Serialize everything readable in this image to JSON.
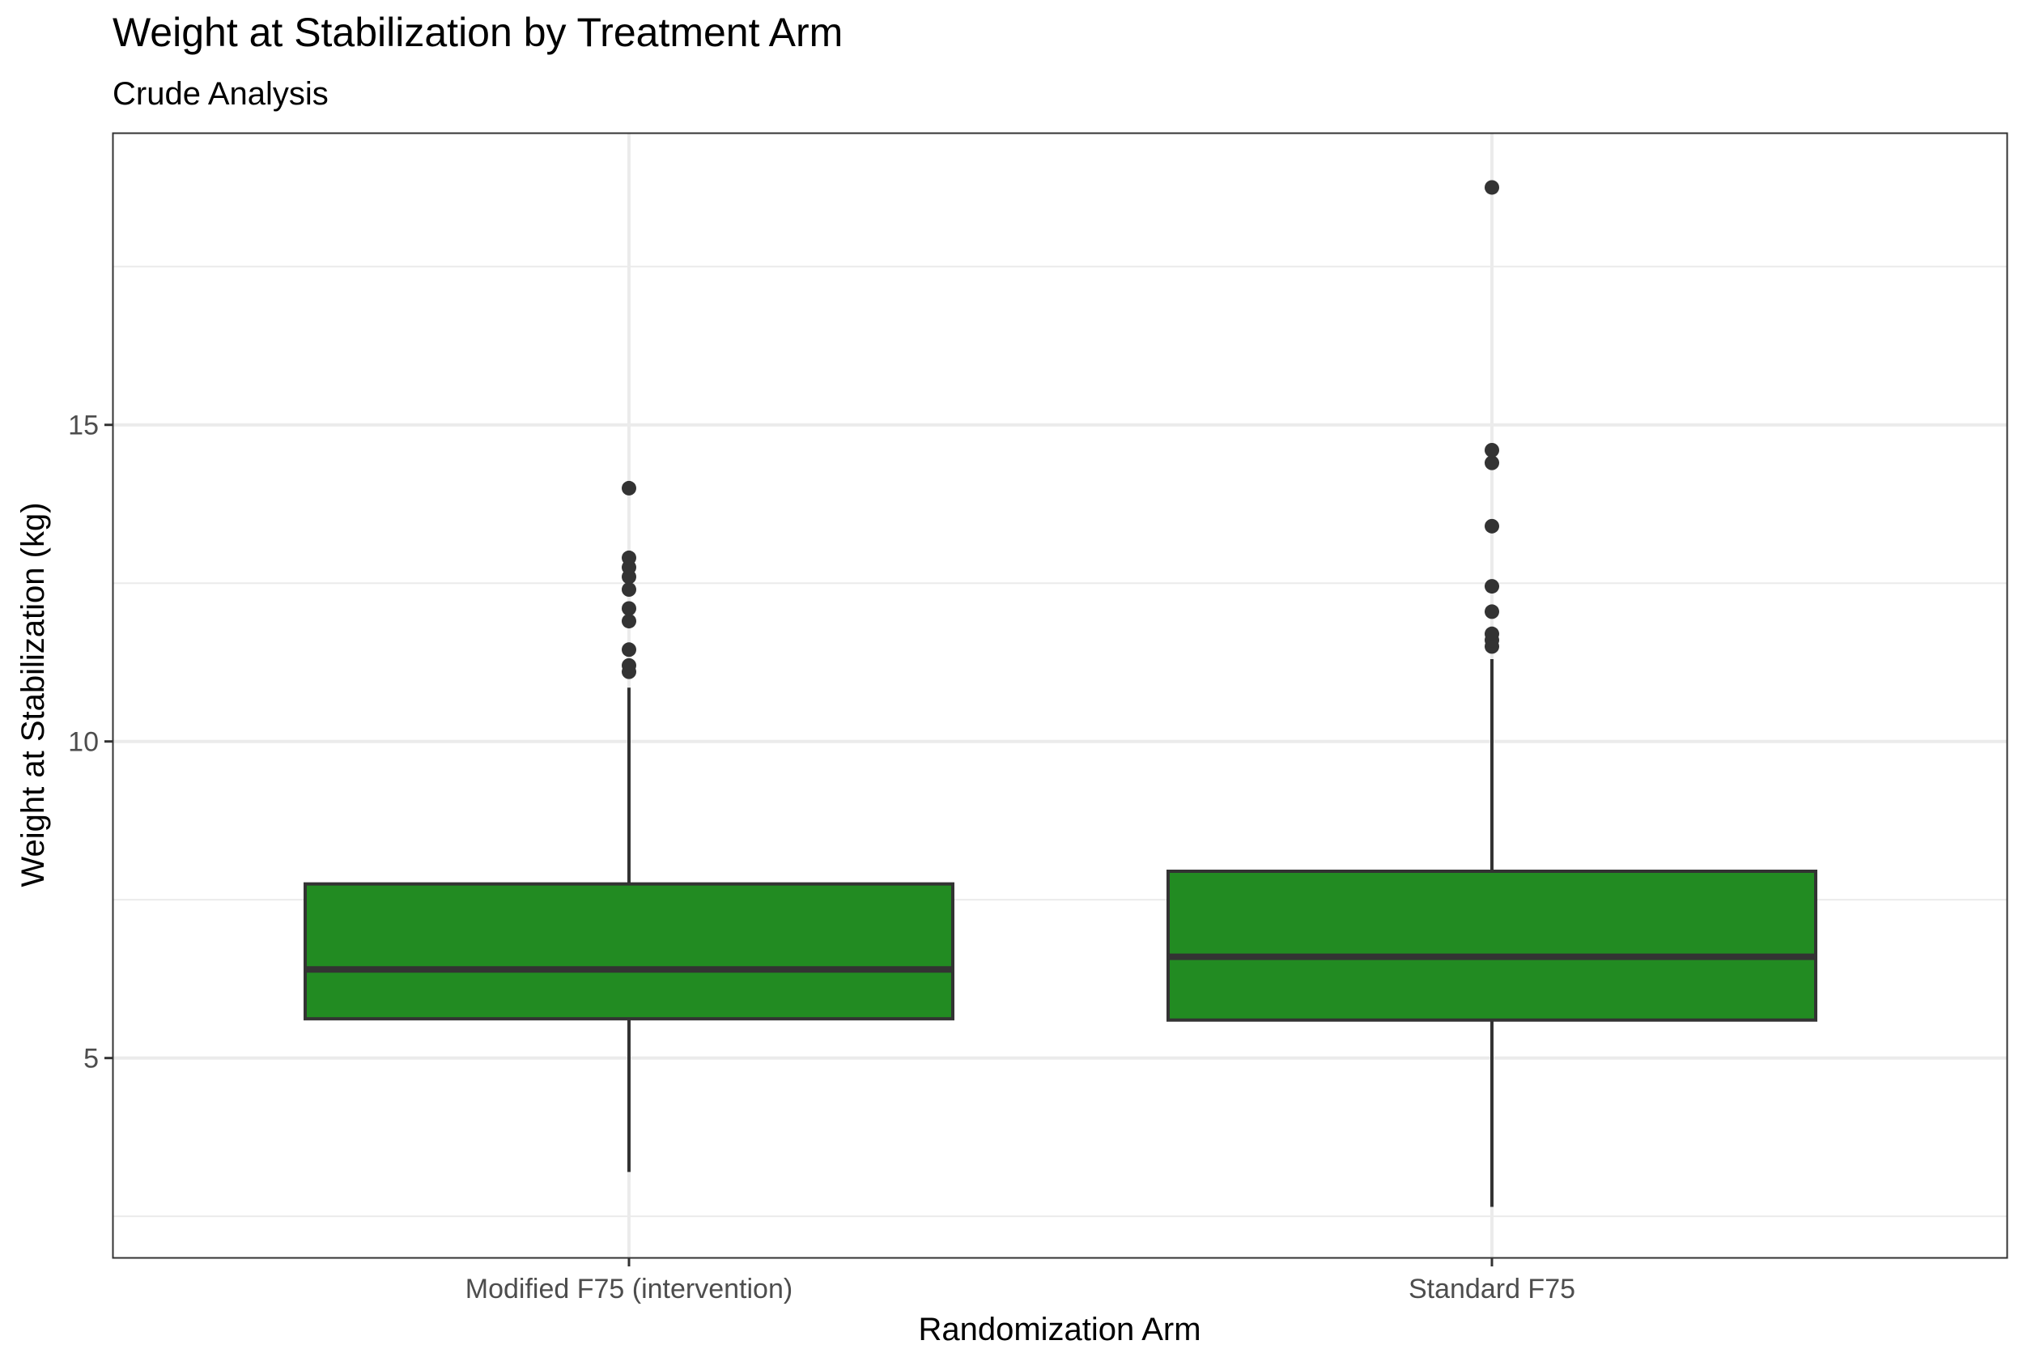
{
  "chart_data": {
    "type": "boxplot",
    "title": "Weight at Stabilization by Treatment Arm",
    "subtitle": "Crude Analysis",
    "xlabel": "Randomization Arm",
    "ylabel": "Weight at Stabilization (kg)",
    "ylim": [
      1.85,
      19.6
    ],
    "yticks": [
      5,
      10,
      15
    ],
    "minor_gridlines_y": [
      2.5,
      7.5,
      12.5,
      17.5
    ],
    "grid": true,
    "fill_color": "#228B22",
    "line_color": "#333333",
    "categories": [
      "Modified F75 (intervention)",
      "Standard F75"
    ],
    "boxes": [
      {
        "category": "Modified F75 (intervention)",
        "whisker_low": 3.2,
        "q1": 5.62,
        "median": 6.4,
        "q3": 7.75,
        "whisker_high": 10.85,
        "outliers": [
          11.1,
          11.2,
          11.45,
          11.9,
          12.1,
          12.4,
          12.6,
          12.75,
          12.9,
          14.0
        ]
      },
      {
        "category": "Standard F75",
        "whisker_low": 2.65,
        "q1": 5.6,
        "median": 6.6,
        "q3": 7.95,
        "whisker_high": 11.3,
        "outliers": [
          11.5,
          11.6,
          11.7,
          12.05,
          12.45,
          13.4,
          14.4,
          14.6,
          18.75
        ]
      }
    ]
  }
}
